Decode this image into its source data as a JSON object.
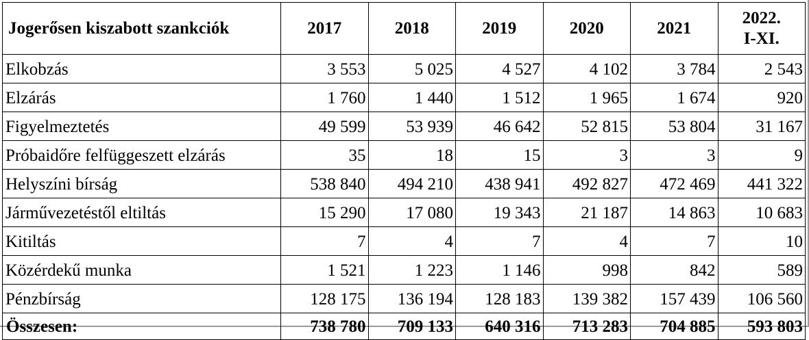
{
  "table": {
    "header": {
      "label": "Jogerősen kiszabott szankciók",
      "years": [
        "2017",
        "2018",
        "2019",
        "2020",
        "2021"
      ],
      "last_line1": "2022.",
      "last_line2": "I-XI."
    },
    "rows": [
      {
        "label": "Elkobzás",
        "values": [
          "3 553",
          "5 025",
          "4 527",
          "4 102",
          "3 784",
          "2 543"
        ]
      },
      {
        "label": "Elzárás",
        "values": [
          "1 760",
          "1 440",
          "1 512",
          "1 965",
          "1 674",
          "920"
        ]
      },
      {
        "label": "Figyelmeztetés",
        "values": [
          "49 599",
          "53 939",
          "46 642",
          "52 815",
          "53 804",
          "31 167"
        ]
      },
      {
        "label": "Próbaidőre felfüggeszett elzárás",
        "values": [
          "35",
          "18",
          "15",
          "3",
          "3",
          "9"
        ]
      },
      {
        "label": "Helyszíni bírság",
        "values": [
          "538 840",
          "494 210",
          "438 941",
          "492 827",
          "472 469",
          "441 322"
        ]
      },
      {
        "label": "Járművezetéstől eltiltás",
        "values": [
          "15 290",
          "17 080",
          "19 343",
          "21 187",
          "14 863",
          "10 683"
        ]
      },
      {
        "label": "Kitiltás",
        "values": [
          "7",
          "4",
          "7",
          "4",
          "7",
          "10"
        ]
      },
      {
        "label": "Közérdekű munka",
        "values": [
          "1 521",
          "1 223",
          "1 146",
          "998",
          "842",
          "589"
        ]
      },
      {
        "label": "Pénzbírság",
        "values": [
          "128 175",
          "136 194",
          "128 183",
          "139 382",
          "157 439",
          "106 560"
        ]
      }
    ],
    "total": {
      "label": "Összesen:",
      "values": [
        "738 780",
        "709 133",
        "640 316",
        "713 283",
        "704 885",
        "593 803"
      ]
    }
  }
}
